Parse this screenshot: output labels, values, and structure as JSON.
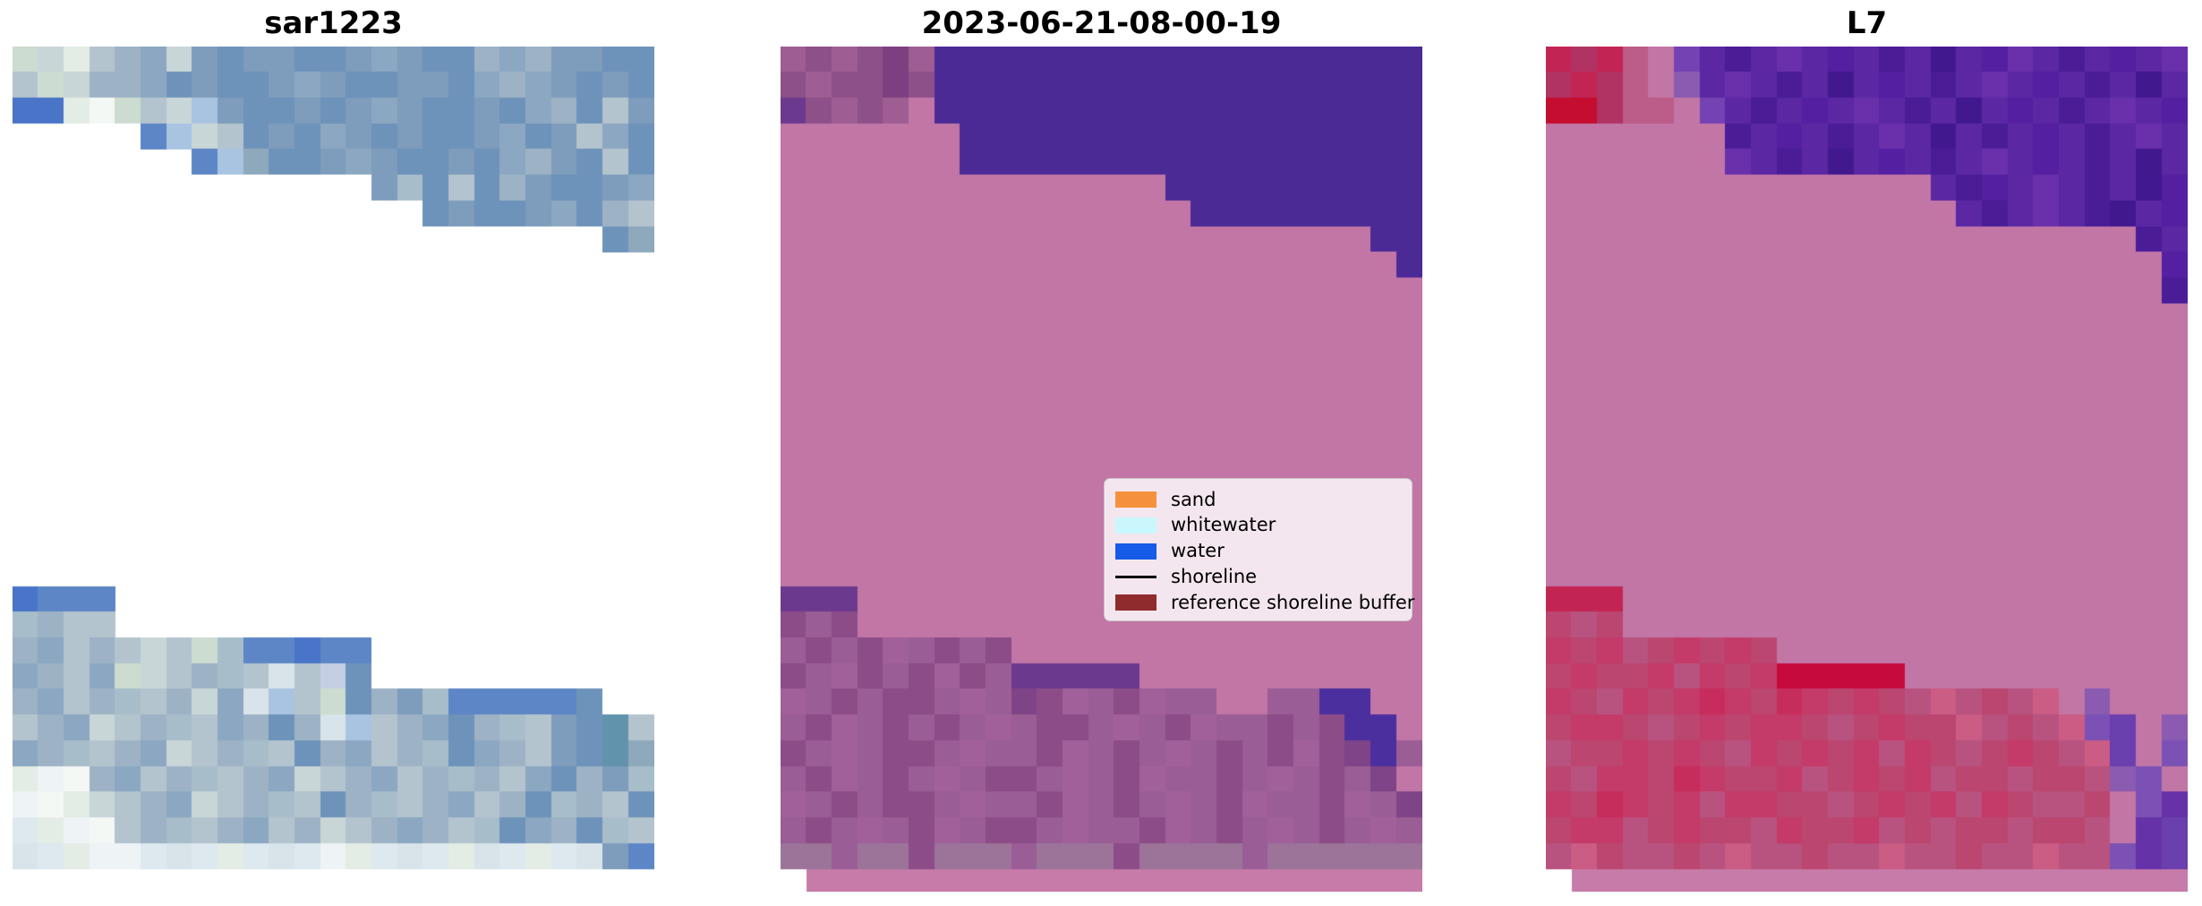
{
  "figure": {
    "background": "#ffffff",
    "description": "Three-panel satellite image classification figure"
  },
  "chart_data": {
    "type": "heatmap",
    "subtype": "image-mosaic-panels",
    "titles": [
      "sar1223",
      "2023-06-21-08-00-19",
      "L7"
    ],
    "legend_entries": [
      "sand",
      "whitewater",
      "water",
      "shoreline",
      "reference shoreline buffer"
    ],
    "legend_position": "center-right of middle panel",
    "grid": "off",
    "axes": "off"
  },
  "legend": {
    "items": [
      {
        "label": "sand",
        "swatch": "#f5913d",
        "type": "patch"
      },
      {
        "label": "whitewater",
        "swatch": "#c9f7fb",
        "type": "patch"
      },
      {
        "label": "water",
        "swatch": "#155ce8",
        "type": "patch"
      },
      {
        "label": "shoreline",
        "swatch": "#000000",
        "type": "line"
      },
      {
        "label": "reference shoreline buffer",
        "swatch": "#8f2a2d",
        "type": "patch"
      }
    ]
  },
  "panels": [
    {
      "id": "sar1223",
      "title": "sar1223",
      "cols": 25,
      "rows": 32,
      "gridHeight": 919,
      "strip": null,
      "palette": {
        "a": "#7e9cbb",
        "b": "#6e93ba",
        "c": "#8ba7c1",
        "d": "#9db3c5",
        "e": "#b4c4ce",
        "f": "#c9d6d8",
        "g": "#5d86c6",
        "h": "#4a74c7",
        "i": "#ccdcd0",
        "j": "#e3ece5",
        "k": "#f4f8f5",
        "l": "#a8bdca",
        "m": "#8ea9bb",
        "n": "#d9e4ea",
        "o": "#a9c4e1",
        "p": "#c5cfe4",
        "q": "#6293ac",
        "s": "#dde8ef",
        "t": "#eef4f6"
      },
      "grid": [
        "ifjedcfabaabbacabbdcdaabb",
        "eifddcbabbacabbaabcdcabab",
        "hhjkiefoabbabacabbabcdbea",
        ".....gofebabcababbacbaecb",
        ".......gombbacabbabcdabeb",
        "..............albebdabbac",
        "................babbacbde",
        ".......................bm",
        ".........................",
        ".........................",
        ".........................",
        ".........................",
        ".........................",
        ".........................",
        ".........................",
        ".........................",
        ".........................",
        ".........................",
        ".........................",
        ".........................",
        ".........................",
        "hggg.....................",
        "ldee.....................",
        "dcedefeilgghgg...........",
        "cdecifedlenepb...........",
        "dcedledfcnoeibdalgggggb..",
        "edcfedlecdbdnoedcbdleabqe",
        "cdledcfedlebdcedlbcdeabqm",
        "jtkdcedledcfedcedldecbdal",
        "tkjfedcfedlebdledcedbldeb",
        "sjtkedledcedfedcdelbcdble",
        "nsjttsnsjsnstjsnsjnsjsnag"
      ]
    },
    {
      "id": "t20230621",
      "title": "2023-06-21-08-00-19",
      "cols": 25,
      "rows": 32,
      "gridHeight": 919,
      "strip": {
        "color": "#c77ba9",
        "inset": 29,
        "height": 25
      },
      "palette": {
        "P": "#c176a6",
        "U": "#4b2a96",
        "a": "#9f5e93",
        "b": "#8e5088",
        "c": "#7d3f80",
        "D": "#6b3a8e",
        "I": "#4c2f9e",
        "e": "#9a5d95",
        "f": "#8c4c88",
        "g": "#a2609a",
        "h": "#7e4487",
        "G": "#9c7499"
      },
      "grid": [
        "ababcaUUUUUUUUUUUUUUUUUUU",
        "babbcbUUUUUUUUUUUUUUUUUUU",
        "DbabaPUUUUUUUUUUUUUUUUUUU",
        "PPPPPPPUUUUUUUUUUUUUUUUUU",
        "PPPPPPPUUUUUUUUUUUUUUUUUU",
        "PPPPPPPPPPPPPPPUUUUUUUUUU",
        "PPPPPPPPPPPPPPPPUUUUUUUUU",
        "PPPPPPPPPPPPPPPPPPPPPPPUU",
        "PPPPPPPPPPPPPPPPPPPPPPPPU",
        "PPPPPPPPPPPPPPPPPPPPPPPPP",
        "PPPPPPPPPPPPPPPPPPPPPPPPP",
        "PPPPPPPPPPPPPPPPPPPPPPPPP",
        "PPPPPPPPPPPPPPPPPPPPPPPPP",
        "PPPPPPPPPPPPPPPPPPPPPPPPP",
        "PPPPPPPPPPPPPPPPPPPPPPPPP",
        "PPPPPPPPPPPPPPPPPPPPPPPPP",
        "PPPPPPPPPPPPPPPPPPPPPPPPP",
        "PPPPPPPPPPPPPPPPPPPPPPPPP",
        "PPPPPPPPPPPPPPPPPPPPPPPPP",
        "PPPPPPPPPPPPPPPPPPPPPPPPP",
        "PPPPPPPPPPPPPPPPPPPPPPPPP",
        "DDDPPPPPPPPPPPPPPPPPPPPPP",
        "fefPPPPPPPPPPPPPPPPPPPPPP",
        "efefgefefPPPPPPPPPPPPPPPP",
        "fegfefgfeDDDDDPPPPPPPPPPP",
        "gefeffegehfgefgeePPeeIIPP",
        "efgefefegeffegefgeefefIIP",
        "fegeffegeefgefegefefgfhIe",
        "efgefegeffegefgeefegefehP",
        "gefeffegeefgefegefgeefgeh",
        "efegefgeffegeefgefegefege",
        "GGeGGfGGGeGGGfGGGGeGGGGGG"
      ]
    },
    {
      "id": "L7",
      "title": "L7",
      "cols": 25,
      "rows": 32,
      "gridHeight": 919,
      "strip": {
        "color": "#c77ba9",
        "inset": 29,
        "height": 25
      },
      "palette": {
        "P": "#c176a6",
        "R": "#c22553",
        "r": "#b03363",
        "x": "#c50d2f",
        "m": "#bc5c88",
        "t": "#7442b2",
        "u": "#5b27a3",
        "v": "#4a1d97",
        "w": "#6a30ac",
        "y": "#541fa0",
        "z": "#42188f",
        "c": "#c43a68",
        "d": "#bb466f",
        "e": "#c62d5d",
        "f": "#b85380",
        "g": "#cb5c83",
        "X": "#c60a3e",
        "A": "#7b51b5",
        "B": "#6a3fae",
        "C": "#8a5bb0",
        "E": "#6632a8"
      },
      "grid": [
        "RrRmPtuvuwuyuvuzuywuvuyuw",
        "rRrmPCuwuvuzuyuvuwuyuvuzu",
        "xxrmmPtuvuyuwuvuzuyuvuwuy",
        "PPPPPPPvuyuvuwuzuvuyuvuwu",
        "PPPPPPPwuvuzuyuvuwuyuvuzu",
        "PPPPPPPPPPPPPPPuvyuwuvuzy",
        "PPPPPPPPPPPPPPPPuvuwuvzuy",
        "PPPPPPPPPPPPPPPPPPPPPPPvu",
        "PPPPPPPPPPPPPPPPPPPPPPPPy",
        "PPPPPPPPPPPPPPPPPPPPPPPPv",
        "PPPPPPPPPPPPPPPPPPPPPPPPP",
        "PPPPPPPPPPPPPPPPPPPPPPPPP",
        "PPPPPPPPPPPPPPPPPPPPPPPPP",
        "PPPPPPPPPPPPPPPPPPPPPPPPP",
        "PPPPPPPPPPPPPPPPPPPPPPPPP",
        "PPPPPPPPPPPPPPPPPPPPPPPPP",
        "PPPPPPPPPPPPPPPPPPPPPPPPP",
        "PPPPPPPPPPPPPPPPPPPPPPPPP",
        "PPPPPPPPPPPPPPPPPPPPPPPPP",
        "PPPPPPPPPPPPPPPPPPPPPPPPP",
        "PPPPPPPPPPPPPPPPPPPPPPPPP",
        "RRRPPPPPPPPPPPPPPPPPPPPPP",
        "dfdPPPPPPPPPPPPPPPPPPPPPP",
        "cdcfdcdcdPPPPPPPPPPPPPPPP",
        "dcddcfcdcXXXXXPPPPPPPPPPP",
        "cdfcdcecdecdcdfgfdfgPCPPP",
        "dccdfdcdccdfdcddgfdfgABPC",
        "fddcdcdfcdcdcfcdfdcdfgBPA",
        "dfccdecddcfdcdcfddfddfCAP",
        "cdecdcfccddfdcdcfcdffdPAE",
        "dccfdcddfcddcfdfddfddfPEB",
        "fgdffdfgffdffgffdffgffAEB"
      ]
    }
  ]
}
